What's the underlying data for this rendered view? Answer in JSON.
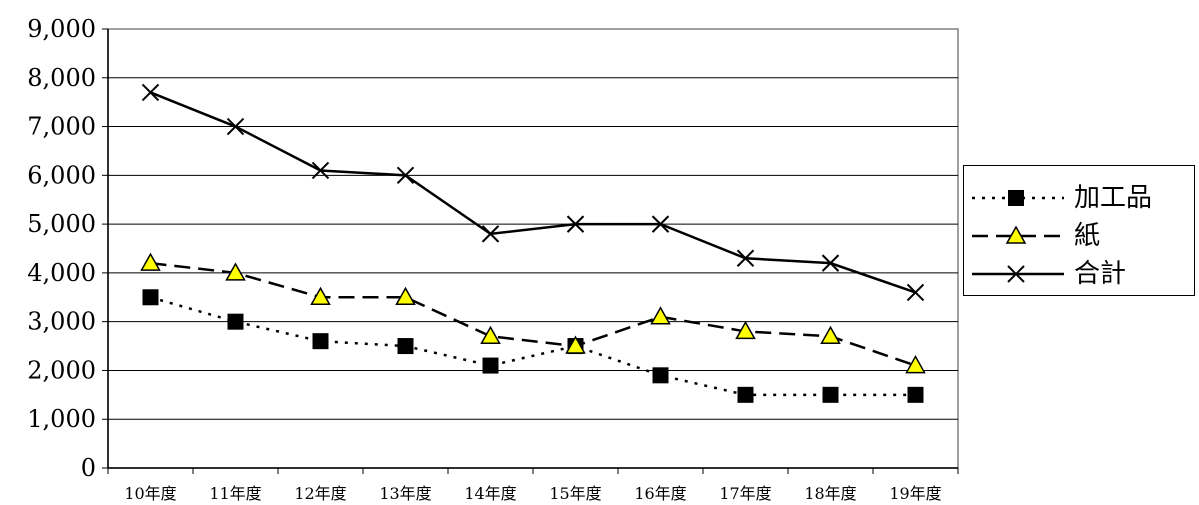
{
  "chart_data": {
    "type": "line",
    "categories": [
      "10年度",
      "11年度",
      "12年度",
      "13年度",
      "14年度",
      "15年度",
      "16年度",
      "17年度",
      "18年度",
      "19年度"
    ],
    "series": [
      {
        "name": "加工品",
        "values": [
          3500,
          3000,
          2600,
          2500,
          2100,
          2500,
          1900,
          1500,
          1500,
          1500
        ],
        "line_style": "dotted",
        "marker": "square",
        "color": "#000000"
      },
      {
        "name": "紙",
        "values": [
          4200,
          4000,
          3500,
          3500,
          2700,
          2500,
          3100,
          2800,
          2700,
          2100
        ],
        "line_style": "dashed",
        "marker": "triangle",
        "color": "#000000",
        "marker_fill": "#ffff00"
      },
      {
        "name": "合計",
        "values": [
          7700,
          7000,
          6100,
          6000,
          4800,
          5000,
          5000,
          4300,
          4200,
          3600
        ],
        "line_style": "solid",
        "marker": "x",
        "color": "#000000"
      }
    ],
    "y_ticks": [
      "0",
      "1,000",
      "2,000",
      "3,000",
      "4,000",
      "5,000",
      "6,000",
      "7,000",
      "8,000",
      "9,000"
    ],
    "ylim": [
      0,
      9000
    ],
    "grid": true,
    "legend_position": "right"
  }
}
